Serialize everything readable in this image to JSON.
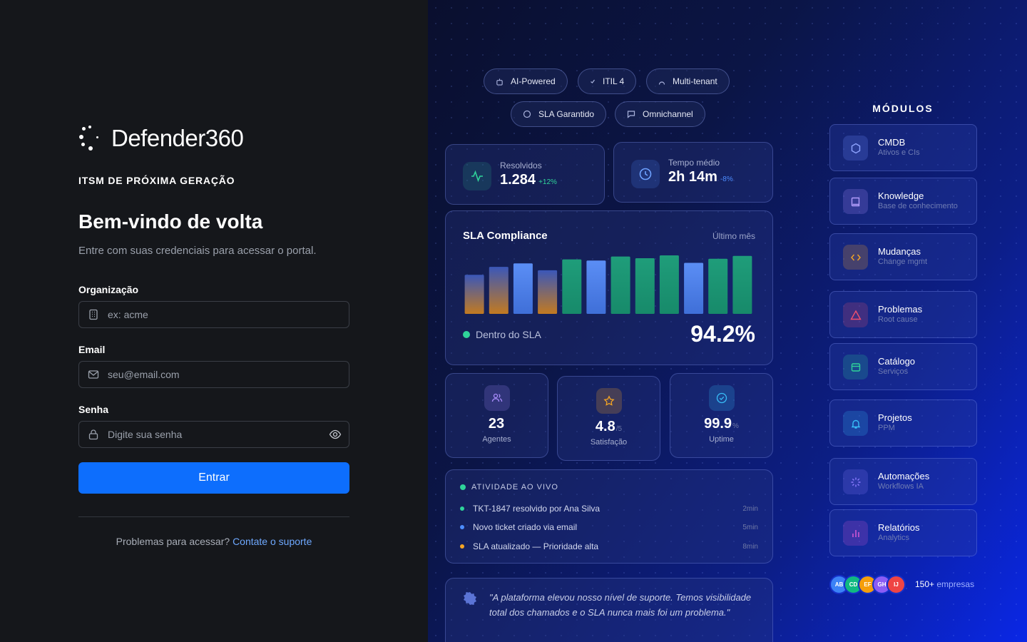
{
  "brand": {
    "name": "Defender360",
    "tagline": "ITSM DE PRÓXIMA GERAÇÃO"
  },
  "login": {
    "title": "Bem-vindo de volta",
    "subtitle": "Entre com suas credenciais para acessar o portal.",
    "org": {
      "label": "Organização",
      "placeholder": "ex: acme"
    },
    "email": {
      "label": "Email",
      "placeholder": "seu@email.com"
    },
    "password": {
      "label": "Senha",
      "placeholder": "Digite sua senha"
    },
    "submit": "Entrar",
    "help_text": "Problemas para acessar?",
    "help_link": "Contate o suporte"
  },
  "pills": [
    {
      "label": "AI-Powered",
      "icon": "robot-icon"
    },
    {
      "label": "ITIL 4",
      "icon": "check-icon"
    },
    {
      "label": "Multi-tenant",
      "icon": "users-icon"
    },
    {
      "label": "SLA Garantido",
      "icon": "circle-icon"
    },
    {
      "label": "Omnichannel",
      "icon": "chat-icon"
    }
  ],
  "kpis": [
    {
      "label": "Resolvidos",
      "value": "1.284",
      "delta": "+12%",
      "icon": "activity-icon",
      "delta_color": "#2fd39a"
    },
    {
      "label": "Tempo médio",
      "value": "2h 14m",
      "delta": "-8%",
      "icon": "clock-icon",
      "delta_color": "#4d8dff"
    }
  ],
  "sla": {
    "title": "SLA Compliance",
    "period": "Último mês",
    "legend": "Dentro do SLA",
    "value": "94.2%"
  },
  "chart_data": {
    "type": "bar",
    "values": [
      68,
      82,
      88,
      76,
      95,
      93,
      100,
      97,
      102,
      89,
      96,
      101
    ],
    "colors": [
      "orange",
      "orange",
      "blue",
      "orange",
      "green",
      "blue",
      "green",
      "green",
      "green",
      "blue",
      "green",
      "green"
    ]
  },
  "stats": [
    {
      "value": "23",
      "unit": "",
      "label": "Agentes",
      "icon": "users-icon",
      "color": "#a78bfa"
    },
    {
      "value": "4.8",
      "unit": "/5",
      "label": "Satisfação",
      "icon": "star-icon",
      "color": "#f5a524"
    },
    {
      "value": "99.9",
      "unit": "%",
      "label": "Uptime",
      "icon": "check-circle-icon",
      "color": "#38bdf8"
    }
  ],
  "activity": {
    "title": "ATIVIDADE AO VIVO",
    "items": [
      {
        "text": "TKT-1847 resolvido por Ana Silva",
        "time": "2min",
        "color": "#2fd39a"
      },
      {
        "text": "Novo ticket criado via email",
        "time": "5min",
        "color": "#4d8dff"
      },
      {
        "text": "SLA atualizado — Prioridade alta",
        "time": "8min",
        "color": "#f5a524"
      }
    ]
  },
  "quote": {
    "text": "\"A plataforma elevou nosso nível de suporte. Temos visibilidade total dos chamados e o SLA nunca mais foi um problema.\""
  },
  "modules": {
    "title": "MÓDULOS",
    "items": [
      {
        "name": "CMDB",
        "desc": "Ativos e CIs",
        "icon": "hexagon-icon",
        "color": "#6f8bff"
      },
      {
        "name": "Knowledge",
        "desc": "Base de conhecimento",
        "icon": "book-icon",
        "color": "#a78bfa"
      },
      {
        "name": "Mudanças",
        "desc": "Change mgmt",
        "icon": "code-icon",
        "color": "#f5a524"
      },
      {
        "name": "Problemas",
        "desc": "Root cause",
        "icon": "warning-icon",
        "color": "#f0506e"
      },
      {
        "name": "Catálogo",
        "desc": "Serviços",
        "icon": "catalog-icon",
        "color": "#2fd39a"
      },
      {
        "name": "Projetos",
        "desc": "PPM",
        "icon": "bell-icon",
        "color": "#38bdf8"
      },
      {
        "name": "Automações",
        "desc": "Workflows IA",
        "icon": "loader-icon",
        "color": "#8b7bff"
      },
      {
        "name": "Relatórios",
        "desc": "Analytics",
        "icon": "bar-chart-icon",
        "color": "#e05ad8"
      }
    ]
  },
  "companies": {
    "avatars": [
      {
        "initials": "AB",
        "color": "#3b82f6"
      },
      {
        "initials": "CD",
        "color": "#10b981"
      },
      {
        "initials": "EF",
        "color": "#f59e0b"
      },
      {
        "initials": "GH",
        "color": "#8b5cf6"
      },
      {
        "initials": "IJ",
        "color": "#ef4444"
      }
    ],
    "count": "150+",
    "label": "empresas"
  }
}
